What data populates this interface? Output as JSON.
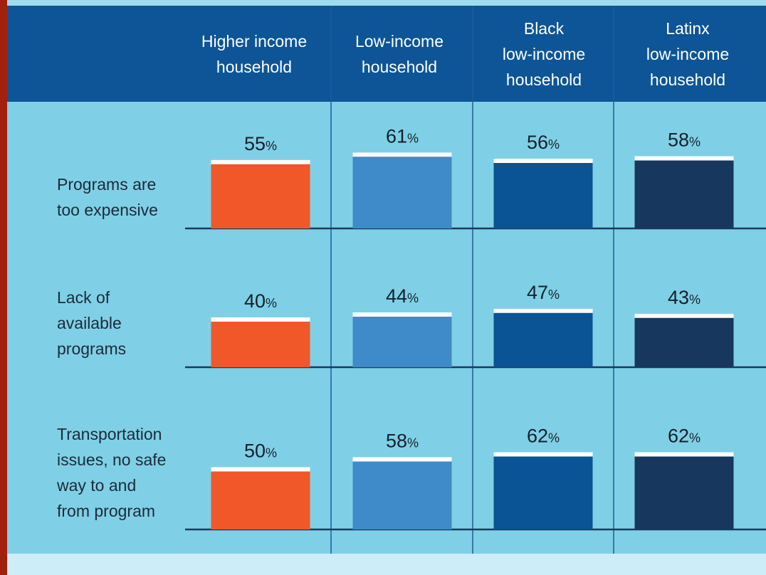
{
  "chart_data": {
    "type": "bar",
    "categories": [
      "Programs are\ntoo expensive",
      "Lack of\navailable\nprograms",
      "Transportation\nissues, no safe\nway to and\nfrom program"
    ],
    "series": [
      {
        "name": "Higher income\nhousehold",
        "color": "#f0582a",
        "values": [
          55,
          40,
          50
        ],
        "value_labels": [
          "55%",
          "40%",
          "50%"
        ]
      },
      {
        "name": "Low-income\nhousehold",
        "color": "#3f8ac8",
        "values": [
          61,
          44,
          58
        ],
        "value_labels": [
          "61%",
          "44%",
          "58%"
        ]
      },
      {
        "name": "Black\nlow-income\nhousehold",
        "color": "#0a5394",
        "values": [
          56,
          47,
          62
        ],
        "value_labels": [
          "56%",
          "47%",
          "62%"
        ]
      },
      {
        "name": "Latinx\nlow-income\nhousehold",
        "color": "#17375e",
        "values": [
          58,
          43,
          62
        ],
        "value_labels": [
          "58%",
          "43%",
          "62%"
        ]
      }
    ]
  }
}
